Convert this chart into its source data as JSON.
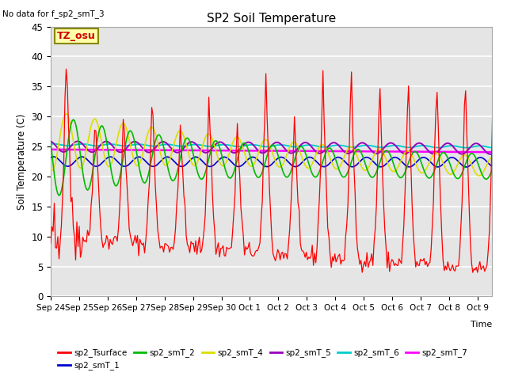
{
  "title": "SP2 Soil Temperature",
  "ylabel": "Soil Temperature (C)",
  "xlabel": "Time",
  "no_data_text": "No data for f_sp2_smT_3",
  "tz_label": "TZ_osu",
  "ylim": [
    0,
    45
  ],
  "yticks": [
    0,
    5,
    10,
    15,
    20,
    25,
    30,
    35,
    40,
    45
  ],
  "x_tick_labels": [
    "Sep 24",
    "Sep 25",
    "Sep 26",
    "Sep 27",
    "Sep 28",
    "Sep 29",
    "Sep 30",
    "Oct 1",
    "Oct 2",
    "Oct 3",
    "Oct 4",
    "Oct 5",
    "Oct 6",
    "Oct 7",
    "Oct 8",
    "Oct 9"
  ],
  "colors": {
    "sp2_Tsurface": "#ff0000",
    "sp2_smT_1": "#0000cc",
    "sp2_smT_2": "#00bb00",
    "sp2_smT_4": "#dddd00",
    "sp2_smT_5": "#9900bb",
    "sp2_smT_6": "#00cccc",
    "sp2_smT_7": "#ff00ff"
  },
  "background_color": "#ffffff",
  "plot_bg_color": "#e5e5e5",
  "grid_color": "#ffffff",
  "legend_items": [
    "sp2_Tsurface",
    "sp2_smT_1",
    "sp2_smT_2",
    "sp2_smT_4",
    "sp2_smT_5",
    "sp2_smT_6",
    "sp2_smT_7"
  ]
}
